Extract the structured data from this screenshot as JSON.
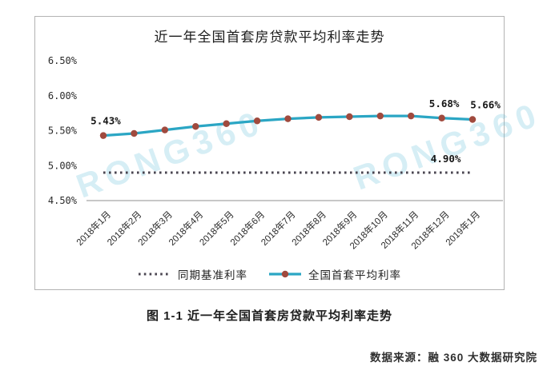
{
  "panel": {
    "title": "近一年全国首套房贷款平均利率走势",
    "watermark": "RONG360"
  },
  "chart_data": {
    "type": "line",
    "title": "近一年全国首套房贷款平均利率走势",
    "categories": [
      "2018年1月",
      "2018年2月",
      "2018年3月",
      "2018年4月",
      "2018年5月",
      "2018年6月",
      "2018年7月",
      "2018年8月",
      "2018年9月",
      "2018年10月",
      "2018年11月",
      "2018年12月",
      "2019年1月"
    ],
    "series": [
      {
        "name": "全国首套平均利率",
        "style": "solid",
        "color": "#2BA6C4",
        "marker_color": "#A04A3E",
        "values": [
          5.43,
          5.46,
          5.51,
          5.56,
          5.6,
          5.64,
          5.67,
          5.69,
          5.7,
          5.71,
          5.71,
          5.68,
          5.66
        ]
      },
      {
        "name": "同期基准利率",
        "style": "dotted",
        "color": "#4A4550",
        "values": [
          4.9,
          4.9,
          4.9,
          4.9,
          4.9,
          4.9,
          4.9,
          4.9,
          4.9,
          4.9,
          4.9,
          4.9,
          4.9
        ]
      }
    ],
    "ylim": [
      4.5,
      6.5
    ],
    "ytick_step": 0.5,
    "ytick_labels": [
      "6.50%",
      "6.00%",
      "5.50%",
      "5.00%",
      "4.50%"
    ],
    "point_labels": [
      {
        "index": 0,
        "text": "5.43%"
      },
      {
        "index": 11,
        "text": "5.68%"
      },
      {
        "index": 12,
        "text": "5.66%"
      }
    ],
    "baseline_label": "4.90%",
    "grid": false,
    "legend_position": "bottom"
  },
  "legend": {
    "items": [
      {
        "label": "同期基准利率"
      },
      {
        "label": "全国首套平均利率"
      }
    ]
  },
  "caption": "图 1-1 近一年全国首套房贷款平均利率走势",
  "source": "数据来源：融 360 大数据研究院"
}
